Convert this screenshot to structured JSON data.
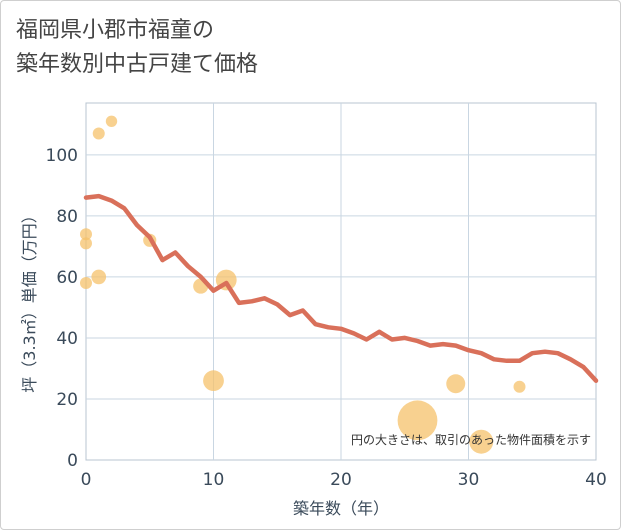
{
  "title_lines": [
    "福岡県小郡市福童の",
    "築年数別中古戸建て価格"
  ],
  "chart_data": {
    "type": "scatter+line",
    "xlabel": "築年数（年）",
    "ylabel": "坪（3.3㎡）単価（万円）",
    "xlim": [
      0,
      40
    ],
    "ylim": [
      0,
      117
    ],
    "x_ticks": [
      0,
      10,
      20,
      30,
      40
    ],
    "y_ticks": [
      0,
      20,
      40,
      60,
      80,
      100
    ],
    "grid": true,
    "note": "円の大きさは、取引のあった物件面積を示す",
    "bubble_color": "#f5c26b",
    "line_color": "#d9705a",
    "bubbles": [
      {
        "x": 0,
        "y": 74,
        "size": 1
      },
      {
        "x": 0,
        "y": 71,
        "size": 1
      },
      {
        "x": 0,
        "y": 58,
        "size": 1
      },
      {
        "x": 1,
        "y": 107,
        "size": 1
      },
      {
        "x": 2,
        "y": 111,
        "size": 0.9
      },
      {
        "x": 1,
        "y": 60,
        "size": 1.5
      },
      {
        "x": 5,
        "y": 72,
        "size": 1.2
      },
      {
        "x": 9,
        "y": 57,
        "size": 1.6
      },
      {
        "x": 11,
        "y": 59,
        "size": 3
      },
      {
        "x": 10,
        "y": 26,
        "size": 3
      },
      {
        "x": 26,
        "y": 13,
        "size": 11
      },
      {
        "x": 29,
        "y": 25,
        "size": 2.5
      },
      {
        "x": 31,
        "y": 6,
        "size": 4
      },
      {
        "x": 34,
        "y": 24,
        "size": 1
      }
    ],
    "trend": {
      "x": [
        0,
        1,
        2,
        3,
        4,
        5,
        6,
        7,
        8,
        9,
        10,
        11,
        12,
        13,
        14,
        15,
        16,
        17,
        18,
        19,
        20,
        21,
        22,
        23,
        24,
        25,
        26,
        27,
        28,
        29,
        30,
        31,
        32,
        33,
        34,
        35,
        36,
        37,
        38,
        39,
        40
      ],
      "y": [
        86,
        86.5,
        85,
        82.5,
        77,
        73,
        65.5,
        68,
        63.5,
        60,
        55.5,
        58,
        51.5,
        52,
        53,
        51,
        47.5,
        49,
        44.5,
        43.5,
        43,
        41.5,
        39.5,
        42,
        39.5,
        40,
        39,
        37.5,
        38,
        37.5,
        36,
        35,
        33,
        32.5,
        32.5,
        35,
        35.5,
        35,
        33,
        30.5,
        26
      ]
    }
  }
}
